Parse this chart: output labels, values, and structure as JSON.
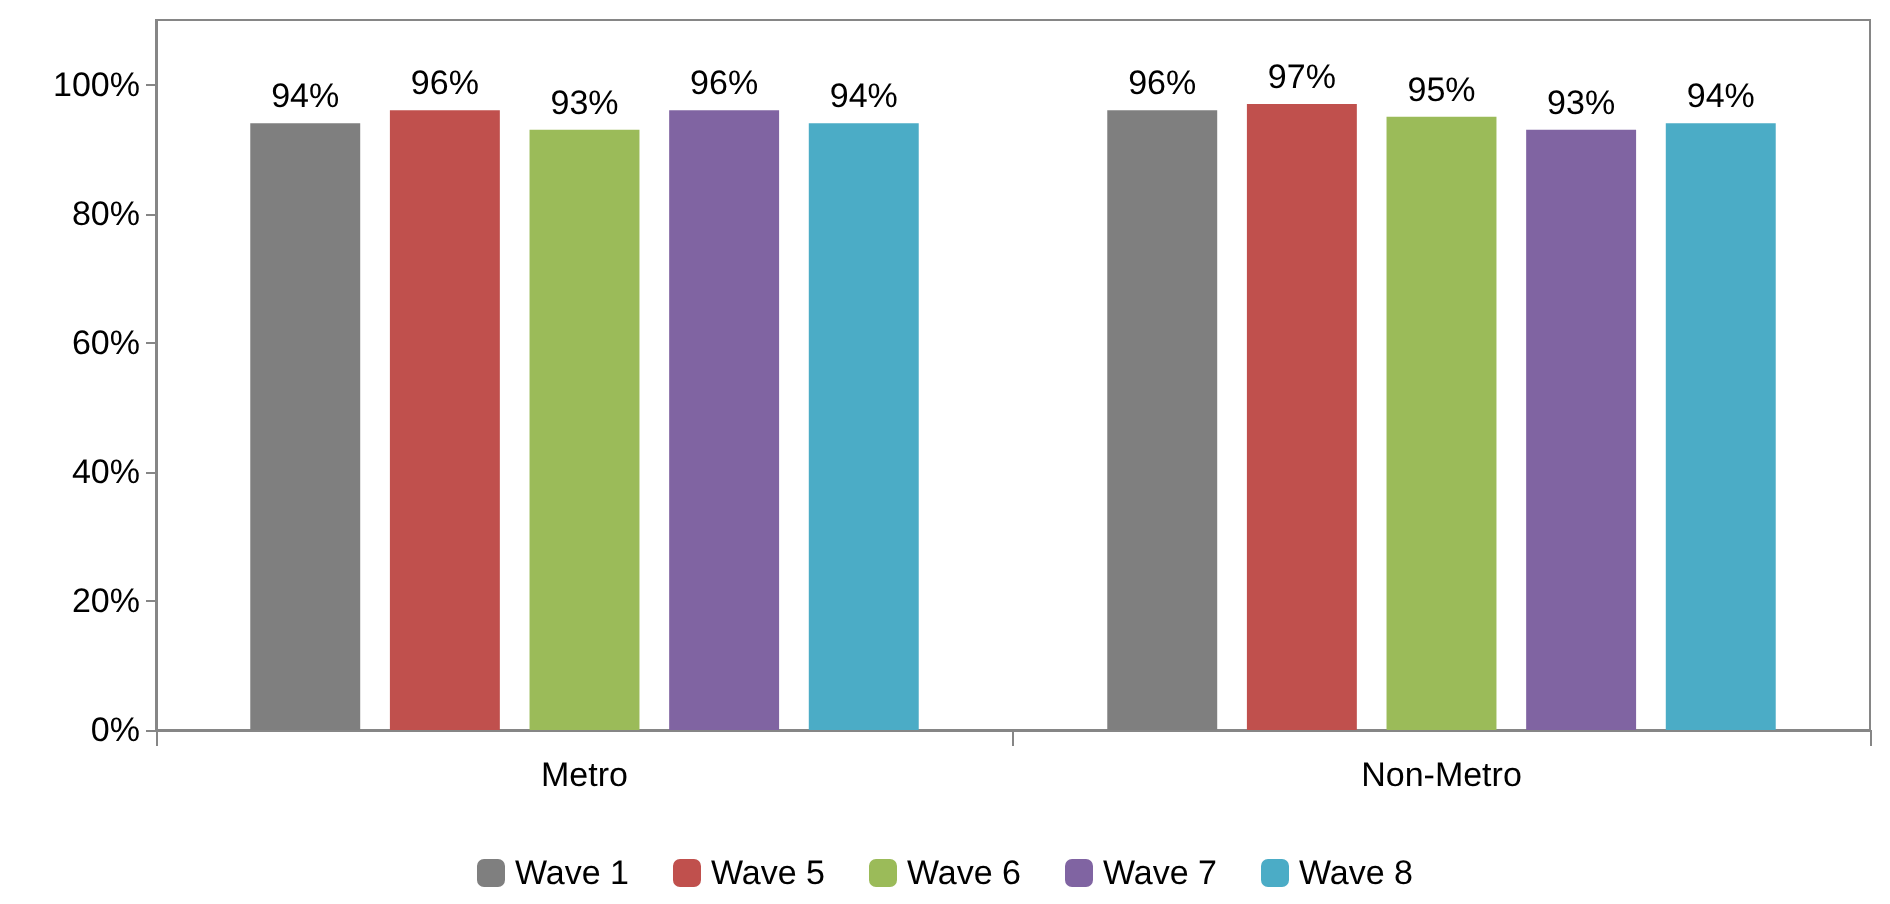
{
  "chart_data": {
    "type": "bar",
    "categories": [
      "Metro",
      "Non-Metro"
    ],
    "series": [
      {
        "name": "Wave 1",
        "color": "#7f7f7f",
        "values": [
          94,
          96
        ],
        "value_labels": [
          "94%",
          "96%"
        ]
      },
      {
        "name": "Wave 5",
        "color": "#c0504d",
        "values": [
          96,
          97
        ],
        "value_labels": [
          "96%",
          "97%"
        ]
      },
      {
        "name": "Wave 6",
        "color": "#9bbb59",
        "values": [
          93,
          95
        ],
        "value_labels": [
          "93%",
          "95%"
        ]
      },
      {
        "name": "Wave 7",
        "color": "#8064a2",
        "values": [
          96,
          93
        ],
        "value_labels": [
          "96%",
          "93%"
        ]
      },
      {
        "name": "Wave 8",
        "color": "#4bacc6",
        "values": [
          94,
          94
        ],
        "value_labels": [
          "94%",
          "94%"
        ]
      }
    ],
    "ylim": [
      0,
      110
    ],
    "yticks": [
      {
        "value": 0,
        "label": "0%"
      },
      {
        "value": 20,
        "label": "20%"
      },
      {
        "value": 40,
        "label": "40%"
      },
      {
        "value": 60,
        "label": "60%"
      },
      {
        "value": 80,
        "label": "80%"
      },
      {
        "value": 100,
        "label": "100%"
      }
    ],
    "grid": false,
    "legend": "bottom"
  }
}
